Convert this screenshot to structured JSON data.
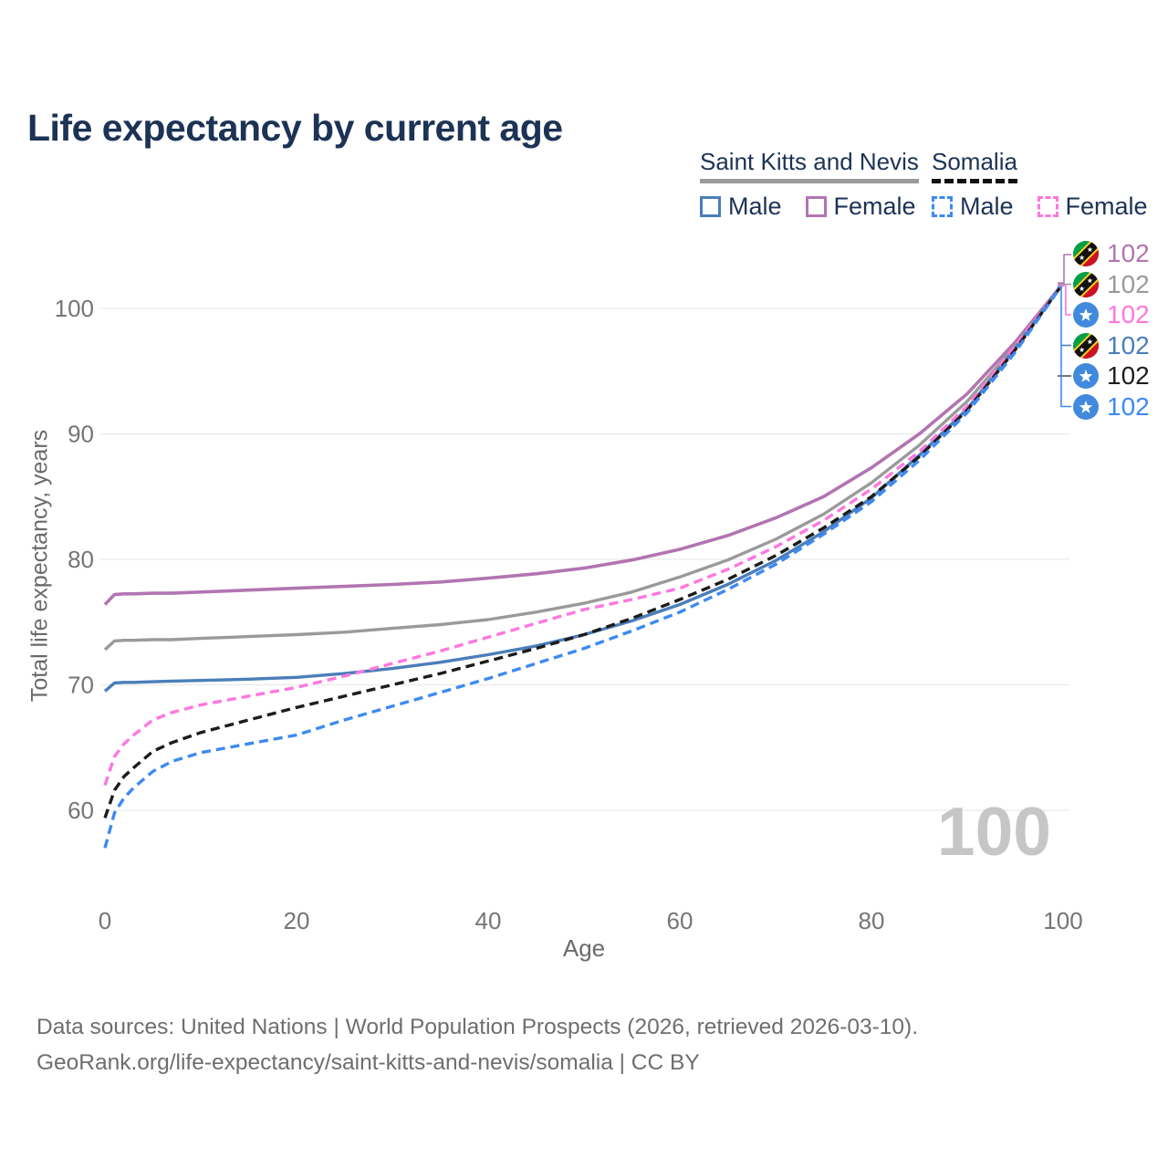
{
  "title": "Life expectancy by current age",
  "age_counter": "100",
  "legend": {
    "groups": [
      {
        "label": "Saint Kitts and Nevis",
        "line_style": "solid",
        "underline_color": "#9a9a9a",
        "items": [
          {
            "label": "Male",
            "color": "#4a7eba"
          },
          {
            "label": "Female",
            "color": "#b175b1"
          }
        ]
      },
      {
        "label": "Somalia",
        "line_style": "dashed",
        "underline_color": "#111111",
        "items": [
          {
            "label": "Male",
            "color": "#3d8af2"
          },
          {
            "label": "Female",
            "color": "#ff77de"
          }
        ]
      }
    ]
  },
  "end_labels": [
    {
      "flag": "saint-kitts-and-nevis",
      "value": "102",
      "color": "#b175b1"
    },
    {
      "flag": "saint-kitts-and-nevis",
      "value": "102",
      "color": "#9a9a9a"
    },
    {
      "flag": "somalia",
      "value": "102",
      "color": "#ff77de"
    },
    {
      "flag": "saint-kitts-and-nevis",
      "value": "102",
      "color": "#4a7eba"
    },
    {
      "flag": "somalia",
      "value": "102",
      "color": "#1e1e1e"
    },
    {
      "flag": "somalia",
      "value": "102",
      "color": "#3d8af2"
    }
  ],
  "footer": {
    "line1": "Data sources: United Nations | World Population Prospects (2026, retrieved 2026-03-10).",
    "line2": "GeoRank.org/life-expectancy/saint-kitts-and-nevis/somalia | CC BY"
  },
  "chart_data": {
    "type": "line",
    "title": "Life expectancy by current age",
    "xlabel": "Age",
    "ylabel": "Total life expectancy, years",
    "xlim": [
      0,
      100
    ],
    "ylim": [
      56,
      104
    ],
    "xticks": [
      0,
      20,
      40,
      60,
      80,
      100
    ],
    "yticks": [
      60,
      70,
      80,
      90,
      100
    ],
    "grid": "horizontal",
    "legend_position": "top-right",
    "x": [
      0,
      1,
      2,
      3,
      5,
      7,
      10,
      15,
      20,
      25,
      30,
      35,
      40,
      45,
      50,
      55,
      60,
      65,
      70,
      75,
      80,
      85,
      90,
      95,
      100
    ],
    "series": [
      {
        "name": "Saint Kitts and Nevis Female",
        "color": "#b175b1",
        "dash": "solid",
        "width": 3.6,
        "values": [
          76.4,
          77.2,
          77.25,
          77.25,
          77.3,
          77.3,
          77.4,
          77.55,
          77.7,
          77.85,
          78.0,
          78.2,
          78.5,
          78.85,
          79.3,
          79.95,
          80.8,
          81.9,
          83.3,
          85.0,
          87.3,
          90.0,
          93.2,
          97.3,
          102
        ]
      },
      {
        "name": "Saint Kitts and Nevis combined",
        "color": "#9a9a9a",
        "dash": "solid",
        "width": 3.4,
        "values": [
          72.8,
          73.5,
          73.55,
          73.55,
          73.6,
          73.6,
          73.7,
          73.85,
          74.0,
          74.2,
          74.5,
          74.8,
          75.2,
          75.8,
          76.5,
          77.4,
          78.6,
          79.95,
          81.6,
          83.6,
          86.1,
          89.1,
          92.6,
          97.0,
          102
        ]
      },
      {
        "name": "Saint Kitts and Nevis Male",
        "color": "#4a7eba",
        "dash": "solid",
        "width": 3.4,
        "values": [
          69.5,
          70.15,
          70.2,
          70.2,
          70.25,
          70.3,
          70.35,
          70.45,
          70.6,
          70.9,
          71.3,
          71.8,
          72.4,
          73.1,
          74.0,
          75.1,
          76.4,
          78.0,
          79.9,
          82.2,
          84.9,
          88.3,
          92.0,
          96.8,
          102
        ]
      },
      {
        "name": "Somalia Female",
        "color": "#ff77de",
        "dash": "dashed",
        "width": 3.4,
        "values": [
          62.0,
          64.3,
          65.3,
          66.0,
          67.2,
          67.8,
          68.4,
          69.1,
          69.8,
          70.7,
          71.7,
          72.7,
          73.8,
          74.9,
          76.0,
          76.8,
          77.7,
          79.2,
          81.0,
          83.1,
          85.6,
          88.6,
          92.2,
          97.0,
          102
        ]
      },
      {
        "name": "Somalia combined",
        "color": "#1c1c1c",
        "dash": "dashed",
        "width": 3.4,
        "values": [
          59.4,
          61.6,
          62.7,
          63.4,
          64.7,
          65.4,
          66.2,
          67.2,
          68.2,
          69.1,
          70.0,
          70.9,
          71.9,
          72.9,
          74.0,
          75.3,
          76.8,
          78.4,
          80.3,
          82.5,
          85.0,
          88.2,
          91.9,
          96.7,
          102
        ]
      },
      {
        "name": "Somalia Male",
        "color": "#3d8af2",
        "dash": "dashed",
        "width": 3.4,
        "values": [
          57.0,
          59.8,
          61.0,
          61.8,
          63.1,
          63.9,
          64.6,
          65.3,
          66.0,
          67.2,
          68.3,
          69.4,
          70.5,
          71.7,
          72.9,
          74.3,
          75.8,
          77.6,
          79.6,
          82.0,
          84.6,
          87.9,
          91.7,
          96.5,
          102
        ]
      }
    ]
  }
}
